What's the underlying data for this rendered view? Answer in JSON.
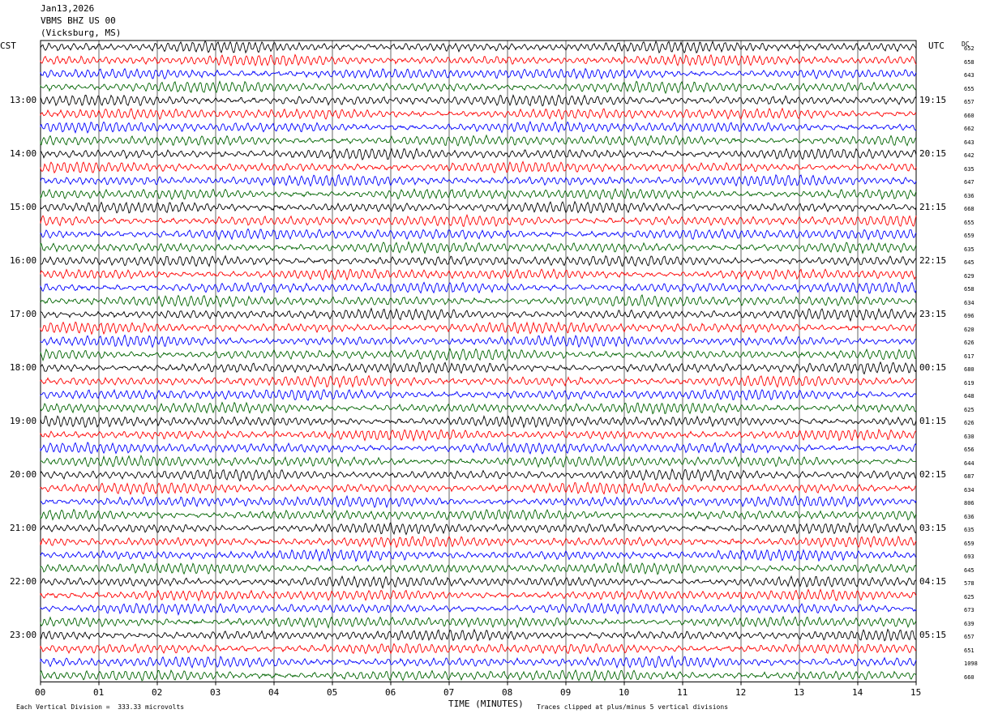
{
  "header": {
    "date": "Jan13,2026",
    "station": "VBMS BHZ US 00",
    "location": "(Vicksburg, MS)"
  },
  "left_axis_title": "CST",
  "right_axis_title": "UTC",
  "dc_title": "DC",
  "footer": {
    "scale": "Each Vertical Division =  333.33 microvolts",
    "clip": "Traces clipped at plus/minus 5 vertical divisions"
  },
  "colors": {
    "c0": "#000000",
    "c1": "#ff0000",
    "c2": "#0000ff",
    "c3": "#006400"
  },
  "chart_data": {
    "type": "line",
    "title": "Jan13,2026 VBMS BHZ US 00 (Vicksburg, MS)",
    "xlabel": "TIME (MINUTES)",
    "xlim": [
      0,
      15
    ],
    "x_ticks": [
      "00",
      "01",
      "02",
      "03",
      "04",
      "05",
      "06",
      "07",
      "08",
      "09",
      "10",
      "11",
      "12",
      "13",
      "14",
      "15"
    ],
    "trace_interval_minutes": 15,
    "trace_count": 48,
    "trace_color_cycle": [
      "black",
      "red",
      "blue",
      "green"
    ],
    "cst_hour_labels": [
      "13:00",
      "14:00",
      "15:00",
      "16:00",
      "17:00",
      "18:00",
      "19:00",
      "20:00",
      "21:00",
      "22:00",
      "23:00"
    ],
    "utc_hour_labels": [
      "19:15",
      "20:15",
      "21:15",
      "22:15",
      "23:15",
      "00:15",
      "01:15",
      "02:15",
      "03:15",
      "04:15",
      "05:15"
    ],
    "dc_offsets": [
      "652",
      "658",
      "643",
      "655",
      "657",
      "660",
      "662",
      "643",
      "642",
      "635",
      "647",
      "636",
      "668",
      "655",
      "659",
      "635",
      "645",
      "629",
      "658",
      "634",
      "696",
      "620",
      "626",
      "617",
      "680",
      "619",
      "648",
      "625",
      "626",
      "630",
      "656",
      "644",
      "687",
      "634",
      "806",
      "636",
      "635",
      "659",
      "693",
      "645",
      "578",
      "625",
      "673",
      "639",
      "657",
      "651",
      "1098",
      "660"
    ],
    "vertical_division_microvolts": 333.33,
    "clip_divisions": 5,
    "grid": true
  }
}
